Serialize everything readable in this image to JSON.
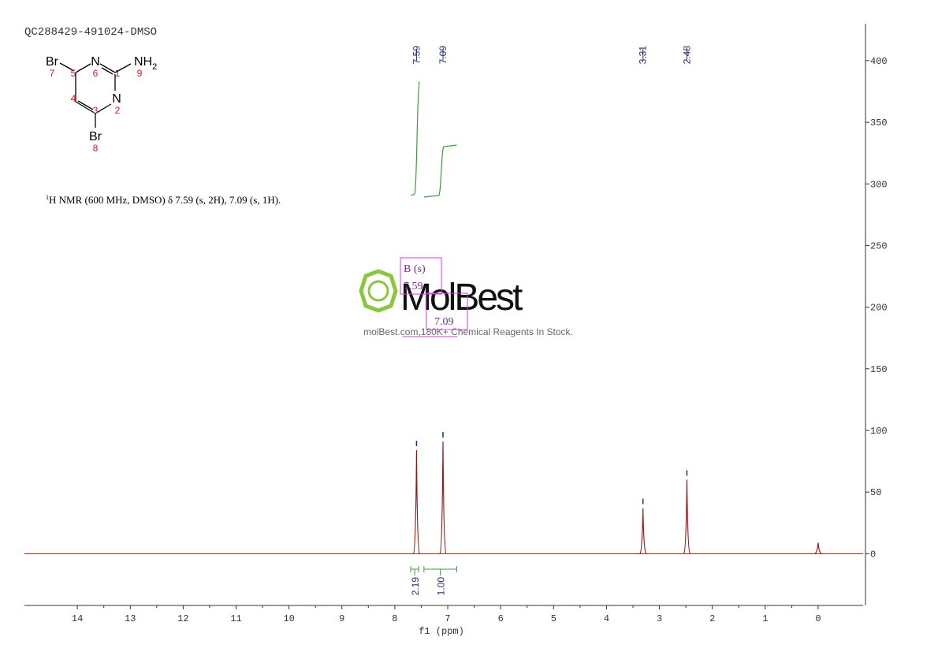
{
  "chart_data": {
    "type": "nmr",
    "title": "QC288429-491024-DMSO",
    "description": {
      "sup": "1",
      "text": "H NMR (600 MHz, DMSO) δ 7.59 (s, 2H), 7.09 (s, 1H)."
    },
    "x_label": "f1 (ppm)",
    "xlim": [
      15,
      -0.85
    ],
    "xticks": [
      14,
      13,
      12,
      11,
      10,
      9,
      8,
      7,
      6,
      5,
      4,
      3,
      2,
      1,
      0
    ],
    "ylim": [
      -42,
      430
    ],
    "yticks": [
      0,
      50,
      100,
      150,
      200,
      250,
      300,
      350,
      400
    ],
    "x": [
      7.59,
      7.09,
      3.31,
      2.48,
      0
    ],
    "values": [
      84,
      91,
      37,
      60,
      9
    ],
    "color": "#8b1c1c",
    "picked_peaks": [
      7.59,
      7.09,
      3.31,
      2.48
    ],
    "picked_color": "#26307a",
    "integrals": {
      "ranges": [
        [
          7.7,
          7.55
        ],
        [
          7.45,
          6.83
        ]
      ],
      "values": [
        2.19,
        1.0
      ],
      "value_labels": [
        "2.19",
        "1.00"
      ],
      "color": "#3f9a3f"
    },
    "multiplets": [
      {
        "name": "B (s)",
        "shift": "7.59"
      },
      {
        "shift": "7.09"
      }
    ]
  },
  "structure": {
    "atoms": [
      "Br",
      "N",
      "NH",
      "2",
      "N",
      "Br"
    ],
    "numbers": [
      "7",
      "5",
      "6",
      "1",
      "9",
      "4",
      "2",
      "3",
      "8"
    ]
  },
  "watermark": {
    "logo": "MolBest",
    "tagline": "molBest.com,180K+ Chemical Reagents In Stock."
  }
}
